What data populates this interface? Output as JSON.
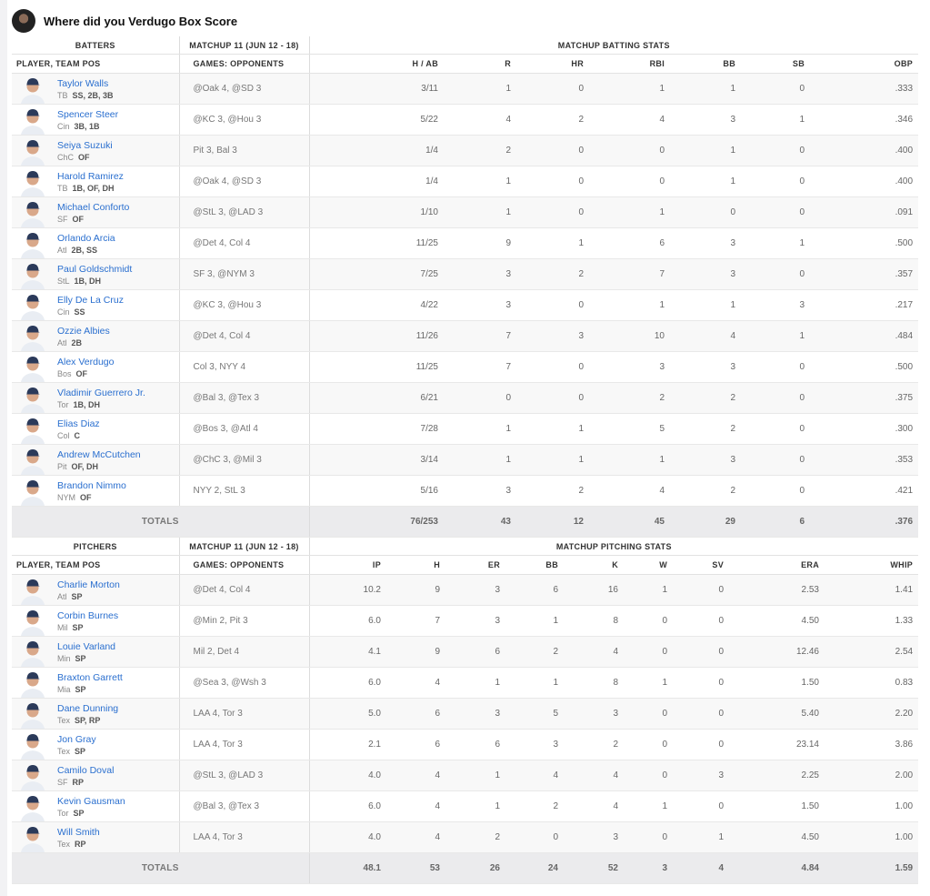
{
  "header": {
    "title": "Where did you Verdugo Box Score"
  },
  "batting": {
    "group_label": "BATTERS",
    "matchup_label": "MATCHUP 11 (JUN 12 - 18)",
    "stats_label": "MATCHUP BATTING STATS",
    "player_col": "PLAYER, TEAM POS",
    "games_col": "GAMES: OPPONENTS",
    "columns": [
      "H / AB",
      "R",
      "HR",
      "RBI",
      "BB",
      "SB",
      "OBP"
    ],
    "rows": [
      {
        "name": "Taylor Walls",
        "team": "TB",
        "pos": "SS, 2B, 3B",
        "games": "@Oak 4, @SD 3",
        "stats": [
          "3/11",
          "1",
          "0",
          "1",
          "1",
          "0",
          ".333"
        ]
      },
      {
        "name": "Spencer Steer",
        "team": "Cin",
        "pos": "3B, 1B",
        "games": "@KC 3, @Hou 3",
        "stats": [
          "5/22",
          "4",
          "2",
          "4",
          "3",
          "1",
          ".346"
        ]
      },
      {
        "name": "Seiya Suzuki",
        "team": "ChC",
        "pos": "OF",
        "games": "Pit 3, Bal 3",
        "stats": [
          "1/4",
          "2",
          "0",
          "0",
          "1",
          "0",
          ".400"
        ]
      },
      {
        "name": "Harold Ramirez",
        "team": "TB",
        "pos": "1B, OF, DH",
        "games": "@Oak 4, @SD 3",
        "stats": [
          "1/4",
          "1",
          "0",
          "0",
          "1",
          "0",
          ".400"
        ]
      },
      {
        "name": "Michael Conforto",
        "team": "SF",
        "pos": "OF",
        "games": "@StL 3, @LAD 3",
        "stats": [
          "1/10",
          "1",
          "0",
          "1",
          "0",
          "0",
          ".091"
        ]
      },
      {
        "name": "Orlando Arcia",
        "team": "Atl",
        "pos": "2B, SS",
        "games": "@Det 4, Col 4",
        "stats": [
          "11/25",
          "9",
          "1",
          "6",
          "3",
          "1",
          ".500"
        ]
      },
      {
        "name": "Paul Goldschmidt",
        "team": "StL",
        "pos": "1B, DH",
        "games": "SF 3, @NYM 3",
        "stats": [
          "7/25",
          "3",
          "2",
          "7",
          "3",
          "0",
          ".357"
        ]
      },
      {
        "name": "Elly De La Cruz",
        "team": "Cin",
        "pos": "SS",
        "games": "@KC 3, @Hou 3",
        "stats": [
          "4/22",
          "3",
          "0",
          "1",
          "1",
          "3",
          ".217"
        ]
      },
      {
        "name": "Ozzie Albies",
        "team": "Atl",
        "pos": "2B",
        "games": "@Det 4, Col 4",
        "stats": [
          "11/26",
          "7",
          "3",
          "10",
          "4",
          "1",
          ".484"
        ]
      },
      {
        "name": "Alex Verdugo",
        "team": "Bos",
        "pos": "OF",
        "games": "Col 3, NYY 4",
        "stats": [
          "11/25",
          "7",
          "0",
          "3",
          "3",
          "0",
          ".500"
        ]
      },
      {
        "name": "Vladimir Guerrero Jr.",
        "team": "Tor",
        "pos": "1B, DH",
        "games": "@Bal 3, @Tex 3",
        "stats": [
          "6/21",
          "0",
          "0",
          "2",
          "2",
          "0",
          ".375"
        ]
      },
      {
        "name": "Elias Diaz",
        "team": "Col",
        "pos": "C",
        "games": "@Bos 3, @Atl 4",
        "stats": [
          "7/28",
          "1",
          "1",
          "5",
          "2",
          "0",
          ".300"
        ]
      },
      {
        "name": "Andrew McCutchen",
        "team": "Pit",
        "pos": "OF, DH",
        "games": "@ChC 3, @Mil 3",
        "stats": [
          "3/14",
          "1",
          "1",
          "1",
          "3",
          "0",
          ".353"
        ]
      },
      {
        "name": "Brandon Nimmo",
        "team": "NYM",
        "pos": "OF",
        "games": "NYY 2, StL 3",
        "stats": [
          "5/16",
          "3",
          "2",
          "4",
          "2",
          "0",
          ".421"
        ]
      }
    ],
    "totals_label": "TOTALS",
    "totals": [
      "76/253",
      "43",
      "12",
      "45",
      "29",
      "6",
      ".376"
    ]
  },
  "pitching": {
    "group_label": "PITCHERS",
    "matchup_label": "MATCHUP 11 (JUN 12 - 18)",
    "stats_label": "MATCHUP PITCHING STATS",
    "player_col": "PLAYER, TEAM POS",
    "games_col": "GAMES: OPPONENTS",
    "columns": [
      "IP",
      "H",
      "ER",
      "BB",
      "K",
      "W",
      "SV",
      "ERA",
      "WHIP"
    ],
    "rows": [
      {
        "name": "Charlie Morton",
        "team": "Atl",
        "pos": "SP",
        "games": "@Det 4, Col 4",
        "stats": [
          "10.2",
          "9",
          "3",
          "6",
          "16",
          "1",
          "0",
          "2.53",
          "1.41"
        ]
      },
      {
        "name": "Corbin Burnes",
        "team": "Mil",
        "pos": "SP",
        "games": "@Min 2, Pit 3",
        "stats": [
          "6.0",
          "7",
          "3",
          "1",
          "8",
          "0",
          "0",
          "4.50",
          "1.33"
        ]
      },
      {
        "name": "Louie Varland",
        "team": "Min",
        "pos": "SP",
        "games": "Mil 2, Det 4",
        "stats": [
          "4.1",
          "9",
          "6",
          "2",
          "4",
          "0",
          "0",
          "12.46",
          "2.54"
        ]
      },
      {
        "name": "Braxton Garrett",
        "team": "Mia",
        "pos": "SP",
        "games": "@Sea 3, @Wsh 3",
        "stats": [
          "6.0",
          "4",
          "1",
          "1",
          "8",
          "1",
          "0",
          "1.50",
          "0.83"
        ]
      },
      {
        "name": "Dane Dunning",
        "team": "Tex",
        "pos": "SP, RP",
        "games": "LAA 4, Tor 3",
        "stats": [
          "5.0",
          "6",
          "3",
          "5",
          "3",
          "0",
          "0",
          "5.40",
          "2.20"
        ]
      },
      {
        "name": "Jon Gray",
        "team": "Tex",
        "pos": "SP",
        "games": "LAA 4, Tor 3",
        "stats": [
          "2.1",
          "6",
          "6",
          "3",
          "2",
          "0",
          "0",
          "23.14",
          "3.86"
        ]
      },
      {
        "name": "Camilo Doval",
        "team": "SF",
        "pos": "RP",
        "games": "@StL 3, @LAD 3",
        "stats": [
          "4.0",
          "4",
          "1",
          "4",
          "4",
          "0",
          "3",
          "2.25",
          "2.00"
        ]
      },
      {
        "name": "Kevin Gausman",
        "team": "Tor",
        "pos": "SP",
        "games": "@Bal 3, @Tex 3",
        "stats": [
          "6.0",
          "4",
          "1",
          "2",
          "4",
          "1",
          "0",
          "1.50",
          "1.00"
        ]
      },
      {
        "name": "Will Smith",
        "team": "Tex",
        "pos": "RP",
        "games": "LAA 4, Tor 3",
        "stats": [
          "4.0",
          "4",
          "2",
          "0",
          "3",
          "0",
          "1",
          "4.50",
          "1.00"
        ]
      }
    ],
    "totals_label": "TOTALS",
    "totals": [
      "48.1",
      "53",
      "26",
      "24",
      "52",
      "3",
      "4",
      "4.84",
      "1.59"
    ]
  }
}
